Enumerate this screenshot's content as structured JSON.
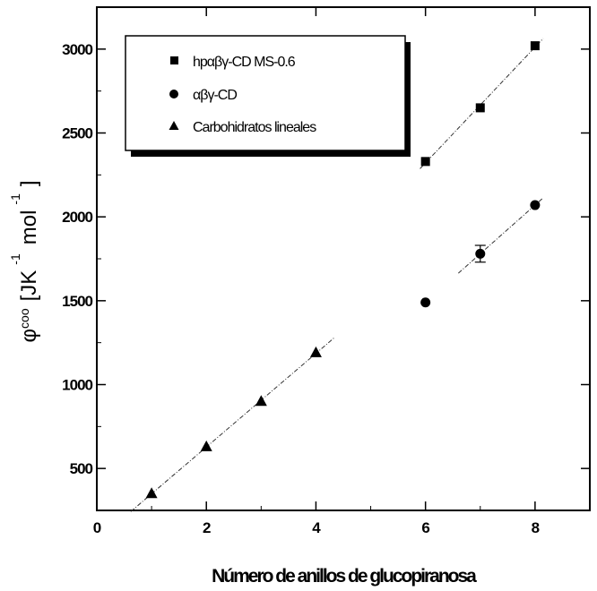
{
  "chart_data": {
    "type": "scatter",
    "title": "",
    "xlabel": "Número de anillos de glucopiranosa",
    "ylabel": "φᶜᵒᵒ [JK⁻¹ mol⁻¹]",
    "ylabel_parts": {
      "symbol": "φ",
      "superscript": "coo",
      "unit_open": "[JK",
      "exp1": "-1",
      "unit_mol": "mol",
      "exp2": "-1",
      "unit_close": "]"
    },
    "xlim": [
      0,
      9
    ],
    "ylim": [
      250,
      3250
    ],
    "x_ticks": [
      0,
      2,
      4,
      6,
      8
    ],
    "y_ticks": [
      500,
      1000,
      1500,
      2000,
      2500,
      3000
    ],
    "x_tick_labels": [
      "0",
      "2",
      "4",
      "6",
      "8"
    ],
    "y_tick_labels": [
      "500",
      "1000",
      "1500",
      "2000",
      "2500",
      "3000"
    ],
    "grid": false,
    "legend_position": "top-left",
    "series": [
      {
        "name": "hpαβγ-CD MS-0.6",
        "marker": "square",
        "x": [
          6,
          7,
          8
        ],
        "y": [
          2330,
          2650,
          3020
        ],
        "fit_x": [
          5.9,
          8.15
        ]
      },
      {
        "name": "αβγ-CD",
        "marker": "circle",
        "x": [
          6,
          7,
          8
        ],
        "y": [
          1490,
          1780,
          2070
        ],
        "error": [
          0,
          50,
          0
        ],
        "fit_x": [
          6.6,
          8.15
        ]
      },
      {
        "name": "Carbohidratos lineales",
        "marker": "triangle",
        "x": [
          1,
          2,
          3,
          4
        ],
        "y": [
          350,
          630,
          900,
          1190
        ],
        "fit_x": [
          0.62,
          4.35
        ]
      }
    ],
    "legend_labels": [
      "hpαβγ-CD MS-0.6",
      "αβγ-CD",
      "Carbohidratos lineales"
    ]
  }
}
